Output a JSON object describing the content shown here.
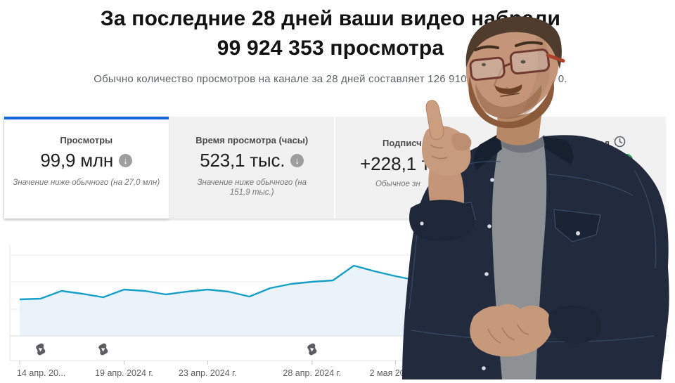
{
  "header": {
    "title_line1": "За последние 28 дней ваши видео набрали",
    "title_line2": "99 924 353 просмотра",
    "subtitle_visible_start": "Обычно количество просмотров на канале за 28 дней составляет 126 910",
    "subtitle_visible_end": "0."
  },
  "tabs": {
    "views": {
      "label": "Просмотры",
      "value": "99,9 млн",
      "trend_icon": "down-arrow-in-circle",
      "note": "Значение ниже обычного (на 27,0 млн)",
      "active": true
    },
    "watch_time": {
      "label": "Время просмотра (часы)",
      "value": "523,1 тыс.",
      "trend_icon": "down-arrow-in-circle",
      "note": "Значение ниже обычного (на 151,9 тыс.)"
    },
    "subscribers": {
      "label_visible": "Подписч",
      "value_visible": "+228,1 ты",
      "note_visible": "Обычное зн"
    },
    "revenue": {
      "label_visible": "доход",
      "status_icon": "clock-icon",
      "secondary_icon": "green-ring-icon"
    }
  },
  "chart_data": {
    "type": "area",
    "series_name": "Просмотры в день",
    "x_start_date": "2024-04-14",
    "x_end_date": "2024-05-03",
    "x_tick_day_indices": [
      0,
      5,
      9,
      14,
      18
    ],
    "x_tick_labels": [
      "14 апр. 20...",
      "19 апр. 2024 г.",
      "23 апр. 2024 г.",
      "28 апр. 2024 г.",
      "2 мая 2024 г."
    ],
    "values_relative_peak100": [
      52,
      53,
      64,
      60,
      55,
      66,
      64,
      59,
      63,
      66,
      63,
      56,
      68,
      74,
      77,
      79,
      100,
      92,
      85,
      79
    ],
    "y_axis_labels_visible": false,
    "grid": true,
    "shorts_marker_day_indices": [
      1,
      4,
      14
    ],
    "shorts_marker_dates": [
      "2024-04-15",
      "2024-04-18",
      "2024-04-28"
    ],
    "line_color": "#189fc7",
    "fill_color": "#e9f3f9",
    "accent_blue": "#1668dd"
  }
}
